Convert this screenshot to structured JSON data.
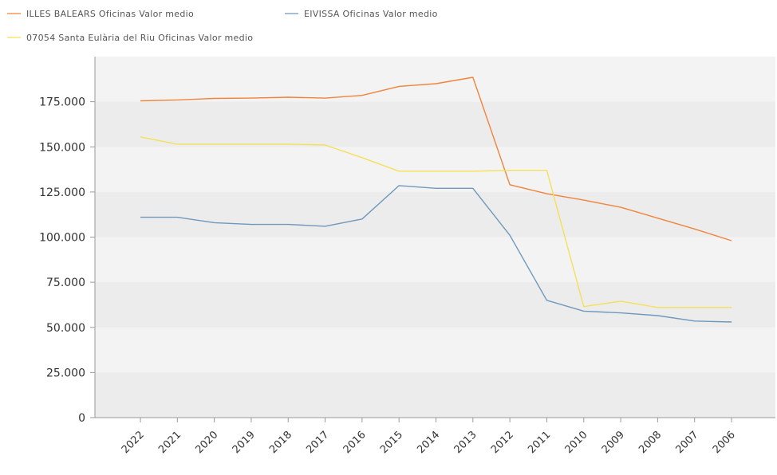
{
  "chart_data": {
    "type": "line",
    "title": "",
    "xlabel": "",
    "ylabel": "",
    "ylim": [
      0,
      200000
    ],
    "y_ticks": [
      0,
      25000,
      50000,
      75000,
      100000,
      125000,
      150000,
      175000
    ],
    "y_tick_labels": [
      "0",
      "25.000",
      "50.000",
      "75.000",
      "100.000",
      "125.000",
      "150.000",
      "175.000"
    ],
    "categories": [
      "2022",
      "2021",
      "2020",
      "2019",
      "2018",
      "2017",
      "2016",
      "2015",
      "2014",
      "2013",
      "2012",
      "2011",
      "2010",
      "2009",
      "2008",
      "2007",
      "2006"
    ],
    "legend_position": "top-left",
    "grid": "horizontal bands",
    "series": [
      {
        "name": "ILLES BALEARS Oficinas Valor medio",
        "color": "#f0843c",
        "values": [
          175500,
          176000,
          176800,
          177000,
          177500,
          177000,
          178500,
          183500,
          185000,
          188500,
          129000,
          124000,
          120500,
          116500,
          110500,
          104500,
          98000
        ]
      },
      {
        "name": "EIVISSA Oficinas Valor medio",
        "color": "#6f98bb",
        "values": [
          111000,
          111000,
          108000,
          107000,
          107000,
          106000,
          110000,
          128500,
          127000,
          127000,
          101000,
          65000,
          59000,
          58000,
          56500,
          53500,
          53000
        ]
      },
      {
        "name": "07054 Santa Eulària del Riu Oficinas Valor medio",
        "color": "#f5e05a",
        "values": [
          155500,
          151500,
          151500,
          151500,
          151500,
          151000,
          144000,
          136500,
          136500,
          136500,
          137000,
          137000,
          61500,
          64500,
          61000,
          61000,
          61000
        ]
      }
    ]
  }
}
